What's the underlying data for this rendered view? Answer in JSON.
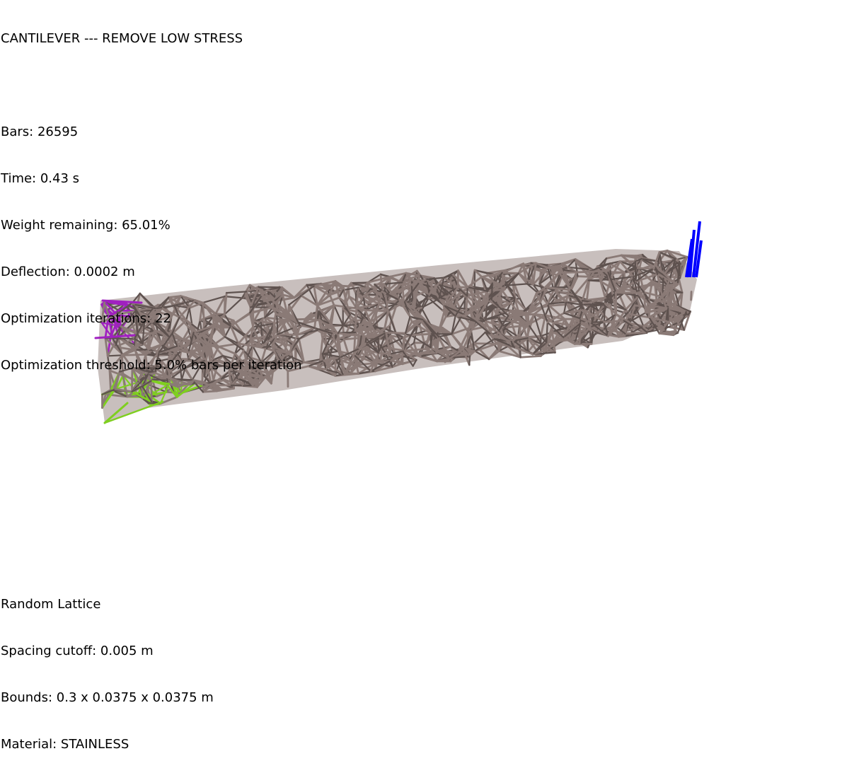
{
  "header": {
    "title": "CANTILEVER --- REMOVE LOW STRESS"
  },
  "stats": {
    "bars": "Bars: 26595",
    "time": "Time: 0.43 s",
    "weight": "Weight remaining: 65.01%",
    "deflection": "Deflection: 0.0002 m",
    "iterations": "Optimization iterations: 22",
    "threshold": "Optimization threshold: 5.0% bars per iteration"
  },
  "lattice_info": {
    "type": "Random Lattice",
    "spacing": "Spacing cutoff: 0.005 m",
    "bounds": "Bounds: 0.3 x 0.0375 x 0.0375 m",
    "material": "Material: STAINLESS"
  },
  "colors": {
    "background": "#ffffff",
    "bar": "#8a7a76",
    "bar_dark": "#5e524f",
    "compression": "#a020c0",
    "tension": "#7fcf20",
    "load": "#0000ff"
  }
}
